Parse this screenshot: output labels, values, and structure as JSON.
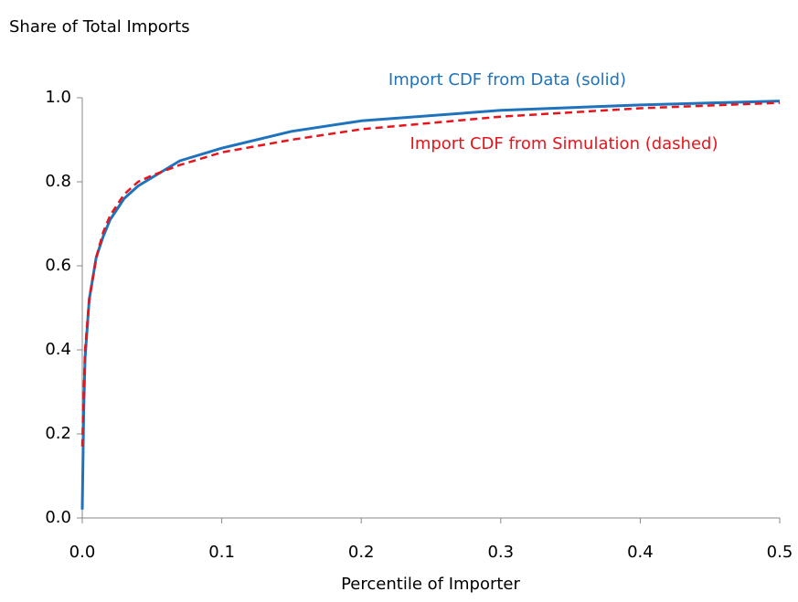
{
  "chart_data": {
    "type": "line",
    "y_axis_title": "Share of Total Imports",
    "x_axis_title": "Percentile of Importer",
    "x": [
      0,
      0.001,
      0.002,
      0.005,
      0.01,
      0.015,
      0.02,
      0.03,
      0.04,
      0.05,
      0.07,
      0.1,
      0.15,
      0.2,
      0.3,
      0.4,
      0.5
    ],
    "series": [
      {
        "name": "Import CDF from Data (solid)",
        "color": "#1f73bd",
        "dashed": false,
        "values": [
          0.02,
          0.25,
          0.38,
          0.52,
          0.62,
          0.67,
          0.71,
          0.76,
          0.79,
          0.81,
          0.85,
          0.88,
          0.92,
          0.945,
          0.97,
          0.983,
          0.992
        ]
      },
      {
        "name": "Import CDF from Simulation (dashed)",
        "color": "#e8141b",
        "dashed": true,
        "values": [
          0.17,
          0.3,
          0.4,
          0.52,
          0.62,
          0.68,
          0.72,
          0.77,
          0.8,
          0.815,
          0.84,
          0.87,
          0.9,
          0.925,
          0.955,
          0.975,
          0.988
        ]
      }
    ],
    "xlim": [
      0,
      0.5
    ],
    "ylim": [
      0,
      1
    ],
    "xticks": [
      {
        "value": 0,
        "label": "0.0"
      },
      0.1,
      0.2,
      0.3,
      0.4,
      0.5
    ],
    "yticks": [
      {
        "value": 0,
        "label": "0.0"
      },
      0.2,
      0.4,
      0.6,
      0.8,
      {
        "value": 1,
        "label": "1.0"
      }
    ],
    "grid": false
  }
}
